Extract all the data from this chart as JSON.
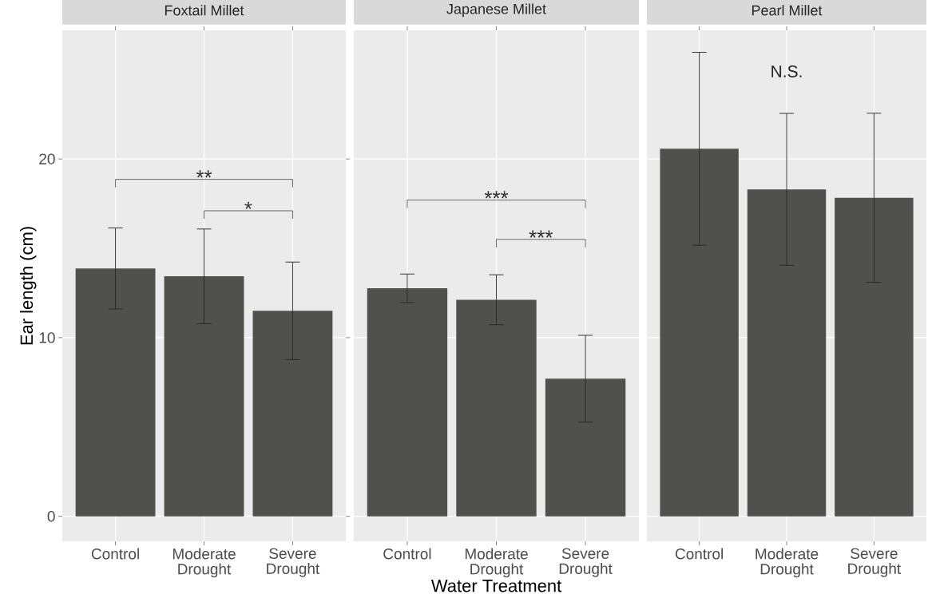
{
  "chart_data": [
    {
      "type": "bar",
      "title": "Foxtail Millet",
      "ylabel": "Ear length (cm)",
      "categories": [
        "Control",
        "Moderate Drought",
        "Severe Drought"
      ],
      "values": [
        13.87,
        13.43,
        11.5
      ],
      "errors": [
        2.27,
        2.65,
        2.73
      ],
      "color": "#50504d",
      "ylim": [
        -1.4,
        27.2
      ],
      "yticks": [
        0,
        10,
        20
      ],
      "grid": true,
      "annotations": [
        "**",
        "*"
      ]
    },
    {
      "type": "bar",
      "title": "Japanese Millet",
      "xlabel": "Water Treatment",
      "categories": [
        "Control",
        "Moderate Drought",
        "Severe Drought"
      ],
      "values": [
        12.76,
        12.12,
        7.7
      ],
      "errors": [
        0.8,
        1.4,
        2.43
      ],
      "color": "#50504d",
      "ylim": [
        -1.4,
        27.2
      ],
      "yticks": [
        0,
        10,
        20
      ],
      "grid": true,
      "tick_labels": "x",
      "annotations": [
        "***",
        "***"
      ]
    },
    {
      "type": "bar",
      "title": "Pearl Millet",
      "categories": [
        "Control",
        "Moderate Drought",
        "Severe Drought"
      ],
      "values": [
        20.57,
        18.3,
        17.83
      ],
      "errors": [
        5.4,
        4.25,
        4.73
      ],
      "color": "#50504d",
      "ylim": [
        -1.4,
        27.2
      ],
      "yticks": [
        0,
        10,
        20
      ],
      "grid": true,
      "tick_labels": "x",
      "annotations": [
        "N.S."
      ]
    }
  ]
}
